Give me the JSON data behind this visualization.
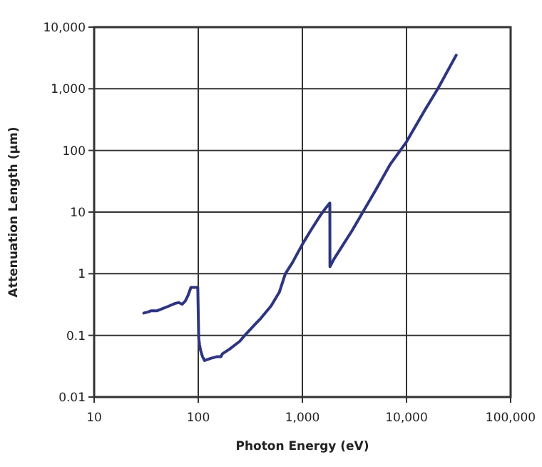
{
  "chart_data": {
    "type": "line",
    "xlabel": "Photon Energy (eV)",
    "ylabel": "Attenuation Length (µm)",
    "log": "xy",
    "grid": true,
    "marker": "none",
    "line_style": "solid",
    "xlim": [
      10,
      100000
    ],
    "ylim": [
      0.01,
      10000
    ],
    "xticks": [
      10,
      100,
      {
        "value": 1000,
        "label": "1,000"
      },
      {
        "value": 10000,
        "label": "10,000"
      },
      {
        "value": 100000,
        "label": "100,000"
      }
    ],
    "yticks": [
      0.01,
      0.1,
      1,
      10,
      100,
      {
        "value": 1000,
        "label": "1,000"
      },
      {
        "value": 10000,
        "label": "10,000"
      }
    ],
    "series": [
      {
        "color": "#2e3580",
        "x": [
          30,
          33,
          35,
          40,
          45,
          50,
          55,
          60,
          65,
          70,
          75,
          80,
          85,
          90,
          95,
          99,
          101,
          103,
          105,
          110,
          115,
          130,
          150,
          165,
          170,
          200,
          250,
          280,
          350,
          400,
          500,
          600,
          686,
          800,
          1000,
          1200,
          1500,
          1700,
          1835,
          1840,
          2000,
          3000,
          5000,
          7000,
          10000,
          15000,
          20000,
          30000
        ],
        "values": [
          0.23,
          0.24,
          0.25,
          0.25,
          0.27,
          0.29,
          0.31,
          0.33,
          0.34,
          0.32,
          0.36,
          0.45,
          0.6,
          0.6,
          0.6,
          0.6,
          0.09,
          0.07,
          0.058,
          0.045,
          0.039,
          0.042,
          0.045,
          0.045,
          0.05,
          0.06,
          0.08,
          0.1,
          0.15,
          0.19,
          0.3,
          0.5,
          1.0,
          1.5,
          3,
          5,
          9,
          12,
          14,
          1.3,
          1.7,
          5,
          22,
          60,
          138,
          450,
          1000,
          3500
        ]
      }
    ]
  }
}
